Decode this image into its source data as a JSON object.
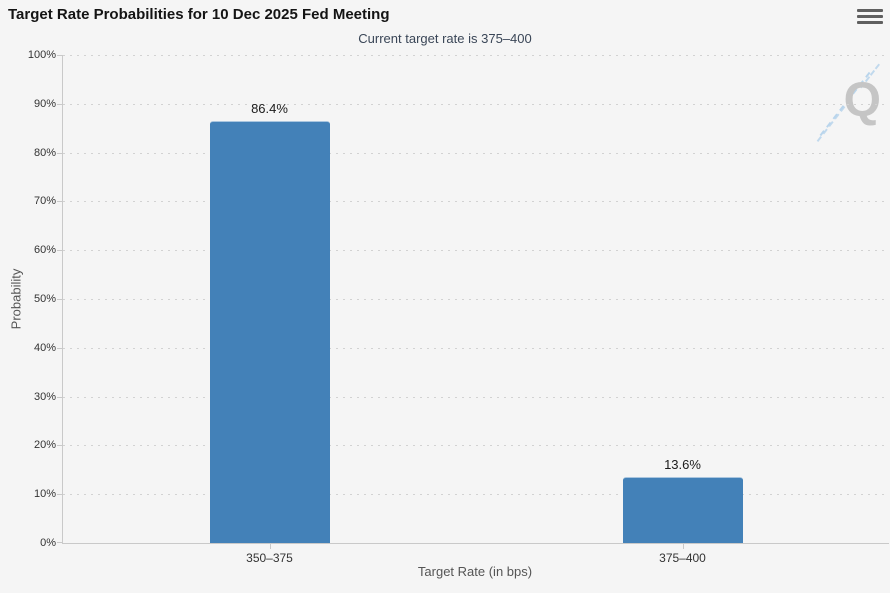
{
  "chart_data": {
    "type": "bar",
    "title": "Target Rate Probabilities for 10 Dec 2025 Fed Meeting",
    "subtitle": "Current target rate is 375–400",
    "categories": [
      "350–375",
      "375–400"
    ],
    "values": [
      86.4,
      13.6
    ],
    "data_labels": [
      "86.4%",
      "13.6%"
    ],
    "xlabel": "Target Rate (in bps)",
    "ylabel": "Probability",
    "ylim": [
      0,
      100
    ],
    "ytick_step": 10,
    "ytick_suffix": "%",
    "legend": "none",
    "grid": "horizontal-dotted",
    "colors": {
      "bar": "#4381b8",
      "axis_line": "#c9c9c9",
      "grid_dot": "#d2d2d2",
      "background": "#f5f5f5",
      "tick_label_text": "#333333",
      "axis_title_text": "#555555",
      "data_label_text": "#1b1b1b"
    }
  },
  "header": {
    "menu_icon": "hamburger-icon"
  },
  "watermark": {
    "letter": "Q"
  }
}
